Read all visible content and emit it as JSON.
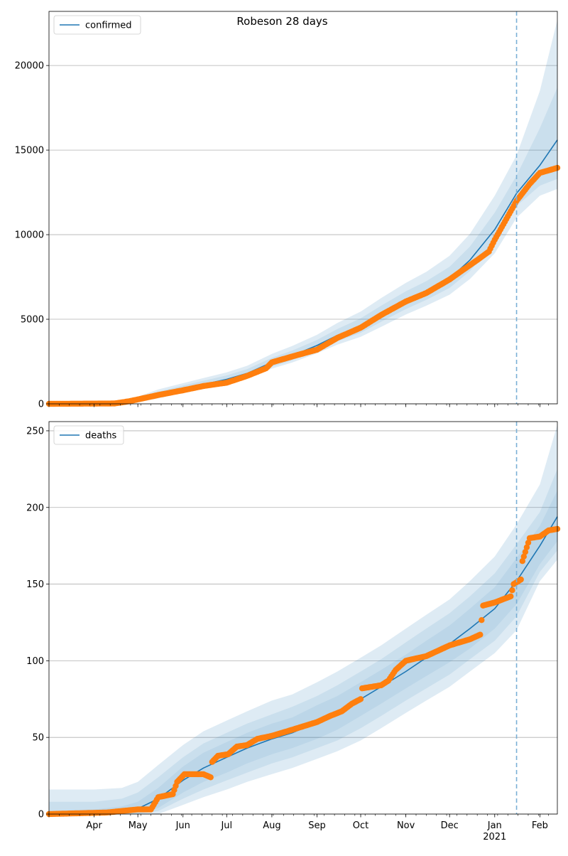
{
  "figure": {
    "title": "Robeson 28 days"
  },
  "colors": {
    "model_line": "#1f77b4",
    "observed": "#ff7f0e",
    "band": "#1f77b4",
    "forecast_line": "#7ab0d6",
    "grid": "#b0b0b0"
  },
  "chart_data": [
    {
      "type": "line",
      "title": "",
      "xlabel": "",
      "ylabel": "",
      "x_range": [
        "2020-03-01",
        "2021-02-13"
      ],
      "ylim": [
        0,
        23200
      ],
      "yticks": [
        0,
        5000,
        10000,
        15000,
        20000
      ],
      "grid": "y",
      "legend": {
        "position": "top-left",
        "entries": [
          "confirmed"
        ]
      },
      "forecast_start": "2021-01-16",
      "model": {
        "name": "confirmed",
        "x": [
          "2020-03-01",
          "2020-04-01",
          "2020-04-15",
          "2020-05-01",
          "2020-05-15",
          "2020-06-01",
          "2020-06-15",
          "2020-07-01",
          "2020-07-15",
          "2020-08-01",
          "2020-08-15",
          "2020-09-01",
          "2020-09-15",
          "2020-10-01",
          "2020-10-15",
          "2020-11-01",
          "2020-11-15",
          "2020-12-01",
          "2020-12-15",
          "2021-01-01",
          "2021-01-16",
          "2021-02-01",
          "2021-02-13"
        ],
        "y": [
          0,
          10,
          60,
          220,
          550,
          900,
          1150,
          1450,
          1800,
          2450,
          2850,
          3450,
          4050,
          4600,
          5300,
          6100,
          6650,
          7400,
          8500,
          10300,
          12450,
          14100,
          15600
        ],
        "bands": [
          {
            "lower": [
              0,
              0,
              20,
              120,
              380,
              720,
              950,
              1230,
              1580,
              2200,
              2580,
              3150,
              3700,
              4200,
              4850,
              5600,
              6150,
              6850,
              7850,
              9500,
              11700,
              12900,
              13300
            ],
            "upper": [
              0,
              30,
              110,
              330,
              720,
              1080,
              1360,
              1680,
              2050,
              2720,
              3150,
              3780,
              4420,
              5050,
              5800,
              6650,
              7250,
              8100,
              9300,
              11300,
              13500,
              16300,
              18700
            ]
          },
          {
            "lower": [
              0,
              0,
              10,
              90,
              320,
              650,
              880,
              1140,
              1480,
              2080,
              2440,
              2990,
              3500,
              3960,
              4550,
              5280,
              5800,
              6450,
              7380,
              8900,
              11000,
              12300,
              12700
            ],
            "upper": [
              0,
              60,
              170,
              420,
              850,
              1220,
              1520,
              1860,
              2250,
              2950,
              3420,
              4080,
              4780,
              5450,
              6250,
              7150,
              7800,
              8750,
              10050,
              12300,
              14700,
              18500,
              22700
            ]
          }
        ]
      },
      "observed": {
        "x": [
          "2020-03-01",
          "2020-04-15",
          "2020-04-25",
          "2020-05-01",
          "2020-05-15",
          "2020-06-01",
          "2020-06-15",
          "2020-07-01",
          "2020-07-15",
          "2020-07-28",
          "2020-08-01",
          "2020-08-15",
          "2020-09-01",
          "2020-09-15",
          "2020-10-01",
          "2020-10-15",
          "2020-11-01",
          "2020-11-15",
          "2020-12-01",
          "2020-12-10",
          "2020-12-20",
          "2020-12-28",
          "2021-01-01",
          "2021-01-16",
          "2021-01-25",
          "2021-02-01",
          "2021-02-13"
        ],
        "y": [
          0,
          20,
          150,
          260,
          520,
          800,
          1050,
          1250,
          1650,
          2100,
          2450,
          2800,
          3200,
          3900,
          4500,
          5250,
          6050,
          6550,
          7350,
          7900,
          8500,
          9000,
          9700,
          12000,
          13000,
          13650,
          13950
        ]
      }
    },
    {
      "type": "line",
      "title": "",
      "xlabel": "",
      "ylabel": "",
      "x_range": [
        "2020-03-01",
        "2021-02-13"
      ],
      "ylim": [
        0,
        256
      ],
      "yticks": [
        0,
        50,
        100,
        150,
        200,
        250
      ],
      "xticks": [
        {
          "date": "2020-04-01",
          "label": "Apr",
          "year": ""
        },
        {
          "date": "2020-05-01",
          "label": "May",
          "year": ""
        },
        {
          "date": "2020-06-01",
          "label": "Jun",
          "year": ""
        },
        {
          "date": "2020-07-01",
          "label": "Jul",
          "year": ""
        },
        {
          "date": "2020-08-01",
          "label": "Aug",
          "year": ""
        },
        {
          "date": "2020-09-01",
          "label": "Sep",
          "year": ""
        },
        {
          "date": "2020-10-01",
          "label": "Oct",
          "year": ""
        },
        {
          "date": "2020-11-01",
          "label": "Nov",
          "year": ""
        },
        {
          "date": "2020-12-01",
          "label": "Dec",
          "year": ""
        },
        {
          "date": "2021-01-01",
          "label": "Jan",
          "year": "2021"
        },
        {
          "date": "2021-02-01",
          "label": "Feb",
          "year": ""
        }
      ],
      "grid": "y",
      "legend": {
        "position": "top-left",
        "entries": [
          "deaths"
        ]
      },
      "forecast_start": "2021-01-16",
      "model": {
        "name": "deaths",
        "x": [
          "2020-03-01",
          "2020-04-01",
          "2020-04-20",
          "2020-05-01",
          "2020-05-15",
          "2020-06-01",
          "2020-06-15",
          "2020-07-01",
          "2020-07-15",
          "2020-08-01",
          "2020-08-15",
          "2020-09-01",
          "2020-09-15",
          "2020-10-01",
          "2020-10-15",
          "2020-11-01",
          "2020-11-15",
          "2020-12-01",
          "2020-12-15",
          "2021-01-01",
          "2021-01-16",
          "2021-02-01",
          "2021-02-13"
        ],
        "y": [
          0,
          0.5,
          2,
          3.5,
          10,
          22,
          30,
          37,
          43,
          49,
          53,
          60,
          66,
          75,
          83,
          93,
          102,
          111,
          121,
          134,
          152,
          175,
          194
        ],
        "bands": [
          {
            "lower": [
              0,
              0,
              0,
              1,
              4,
              14,
              21,
              27,
              33,
              39,
              43,
              49,
              55,
              64,
              72,
              82,
              90,
              99,
              108,
              121,
              137,
              163,
              178
            ],
            "upper": [
              2,
              3,
              5,
              8,
              17,
              31,
              40,
              47,
              53,
              59,
              63,
              71,
              77,
              86,
              94,
              104,
              113,
              123,
              134,
              148,
              167,
              188,
              211
            ]
          },
          {
            "lower": [
              0,
              0,
              0,
              0,
              2,
              10,
              16,
              22,
              27,
              33,
              37,
              43,
              48,
              56,
              64,
              74,
              82,
              91,
              101,
              113,
              129,
              158,
              172
            ],
            "upper": [
              8,
              8,
              10,
              14,
              24,
              37,
              46,
              53,
              59,
              65,
              70,
              77,
              84,
              93,
              101,
              112,
              121,
              131,
              142,
              157,
              176,
              197,
              225
            ]
          },
          {
            "lower": [
              0,
              0,
              0,
              0,
              0,
              6,
              11,
              16,
              21,
              26,
              30,
              36,
              41,
              48,
              56,
              66,
              74,
              83,
              93,
              105,
              120,
              152,
              166
            ],
            "upper": [
              16,
              16,
              17,
              21,
              32,
              45,
              54,
              61,
              67,
              74,
              78,
              86,
              93,
              102,
              110,
              121,
              130,
              140,
              152,
              168,
              189,
              215,
              254
            ]
          }
        ]
      },
      "observed": {
        "x": [
          "2020-03-01",
          "2020-04-10",
          "2020-04-20",
          "2020-05-01",
          "2020-05-10",
          "2020-05-15",
          "2020-05-25",
          "2020-05-28",
          "2020-06-02",
          "2020-06-15",
          "2020-06-20",
          "2020-06-21",
          "2020-06-25",
          "2020-07-02",
          "2020-07-08",
          "2020-07-15",
          "2020-07-22",
          "2020-08-01",
          "2020-08-15",
          "2020-09-01",
          "2020-09-10",
          "2020-09-18",
          "2020-09-25",
          "2020-10-01",
          "2020-10-02",
          "2020-10-15",
          "2020-10-20",
          "2020-10-25",
          "2020-11-01",
          "2020-11-15",
          "2020-12-01",
          "2020-12-15",
          "2020-12-22",
          "2020-12-24",
          "2021-01-01",
          "2021-01-12",
          "2021-01-14",
          "2021-01-19",
          "2021-01-20",
          "2021-01-25",
          "2021-02-01",
          "2021-02-07",
          "2021-02-13"
        ],
        "y": [
          0,
          1,
          2,
          3,
          3,
          11,
          13,
          21,
          26,
          26,
          24,
          34,
          38,
          39,
          44,
          45,
          49,
          51,
          55,
          60,
          64,
          67,
          72,
          75,
          82,
          84,
          87,
          94,
          100,
          103,
          110,
          114,
          117,
          136,
          138,
          142,
          150,
          153,
          165,
          180,
          181,
          185,
          186
        ]
      }
    }
  ]
}
